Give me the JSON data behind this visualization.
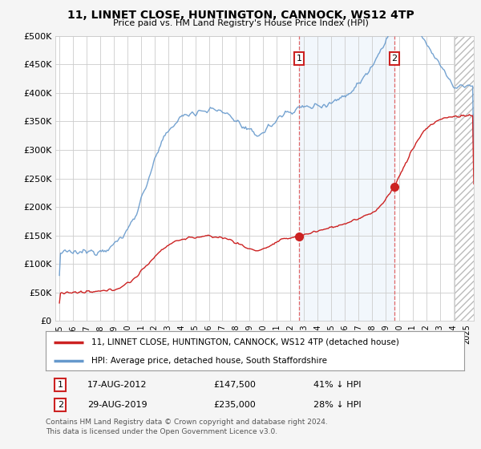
{
  "title": "11, LINNET CLOSE, HUNTINGTON, CANNOCK, WS12 4TP",
  "subtitle": "Price paid vs. HM Land Registry's House Price Index (HPI)",
  "ylabel_ticks": [
    "£0",
    "£50K",
    "£100K",
    "£150K",
    "£200K",
    "£250K",
    "£300K",
    "£350K",
    "£400K",
    "£450K",
    "£500K"
  ],
  "ytick_values": [
    0,
    50000,
    100000,
    150000,
    200000,
    250000,
    300000,
    350000,
    400000,
    450000,
    500000
  ],
  "ylim": [
    0,
    500000
  ],
  "hpi_color": "#6699cc",
  "property_color": "#cc2222",
  "transaction1_year": 2012.63,
  "transaction1_value": 147500,
  "transaction2_year": 2019.66,
  "transaction2_value": 235000,
  "legend_property": "11, LINNET CLOSE, HUNTINGTON, CANNOCK, WS12 4TP (detached house)",
  "legend_hpi": "HPI: Average price, detached house, South Staffordshire",
  "annotation1_date": "17-AUG-2012",
  "annotation1_price": "£147,500",
  "annotation1_pct": "41% ↓ HPI",
  "annotation2_date": "29-AUG-2019",
  "annotation2_price": "£235,000",
  "annotation2_pct": "28% ↓ HPI",
  "footer": "Contains HM Land Registry data © Crown copyright and database right 2024.\nThis data is licensed under the Open Government Licence v3.0.",
  "fig_bg": "#f5f5f5",
  "plot_bg": "#ffffff",
  "grid_color": "#cccccc",
  "hatch_color": "#cccccc"
}
